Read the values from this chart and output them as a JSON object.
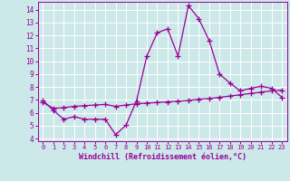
{
  "x": [
    0,
    1,
    2,
    3,
    4,
    5,
    6,
    7,
    8,
    9,
    10,
    11,
    12,
    13,
    14,
    15,
    16,
    17,
    18,
    19,
    20,
    21,
    22,
    23
  ],
  "line1": [
    6.95,
    6.2,
    5.5,
    5.7,
    5.5,
    5.5,
    5.5,
    4.3,
    5.05,
    6.9,
    10.4,
    12.2,
    12.5,
    10.4,
    14.3,
    13.3,
    11.6,
    9.0,
    8.3,
    7.7,
    7.9,
    8.05,
    7.9,
    7.2
  ],
  "line2": [
    6.8,
    6.35,
    6.4,
    6.5,
    6.55,
    6.6,
    6.65,
    6.5,
    6.6,
    6.7,
    6.75,
    6.8,
    6.85,
    6.9,
    6.95,
    7.05,
    7.1,
    7.2,
    7.3,
    7.4,
    7.5,
    7.6,
    7.7,
    7.75
  ],
  "line_color": "#990099",
  "bg_color": "#cce8e8",
  "grid_color": "#ffffff",
  "xlabel": "Windchill (Refroidissement éolien,°C)",
  "xlabel_color": "#990099",
  "tick_color": "#990099",
  "ylim": [
    3.8,
    14.6
  ],
  "xlim": [
    -0.5,
    23.5
  ],
  "yticks": [
    4,
    5,
    6,
    7,
    8,
    9,
    10,
    11,
    12,
    13,
    14
  ],
  "xticks": [
    0,
    1,
    2,
    3,
    4,
    5,
    6,
    7,
    8,
    9,
    10,
    11,
    12,
    13,
    14,
    15,
    16,
    17,
    18,
    19,
    20,
    21,
    22,
    23
  ],
  "marker": "+",
  "markersize": 4,
  "linewidth": 0.9,
  "markeredgewidth": 0.9
}
